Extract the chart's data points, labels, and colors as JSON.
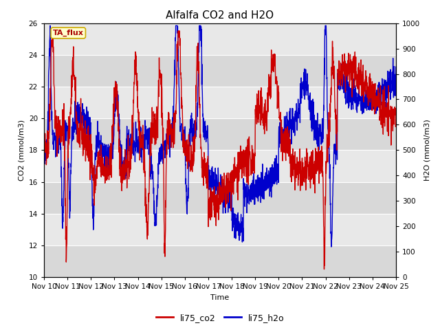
{
  "title": "Alfalfa CO2 and H2O",
  "xlabel": "Time",
  "ylabel_left": "CO2 (mmol/m3)",
  "ylabel_right": "H2O (mmol/m3)",
  "ylim_left": [
    10,
    26
  ],
  "ylim_right": [
    0,
    1000
  ],
  "yticks_left": [
    10,
    12,
    14,
    16,
    18,
    20,
    22,
    24,
    26
  ],
  "yticks_right": [
    0,
    100,
    200,
    300,
    400,
    500,
    600,
    700,
    800,
    900,
    1000
  ],
  "xtick_labels": [
    "Nov 10",
    "Nov 11",
    "Nov 12",
    "Nov 13",
    "Nov 14",
    "Nov 15",
    "Nov 16",
    "Nov 17",
    "Nov 18",
    "Nov 19",
    "Nov 20",
    "Nov 21",
    "Nov 22",
    "Nov 23",
    "Nov 24",
    "Nov 25"
  ],
  "color_co2": "#cc0000",
  "color_h2o": "#0000cc",
  "legend_labels": [
    "li75_co2",
    "li75_h2o"
  ],
  "annotation_text": "TA_flux",
  "annotation_box_facecolor": "#ffffcc",
  "annotation_box_edgecolor": "#ccaa00",
  "background_color": "#e8e8e8",
  "title_fontsize": 11,
  "axis_label_fontsize": 8,
  "tick_label_fontsize": 7.5,
  "legend_fontsize": 9,
  "linewidth_co2": 1.0,
  "linewidth_h2o": 1.0
}
